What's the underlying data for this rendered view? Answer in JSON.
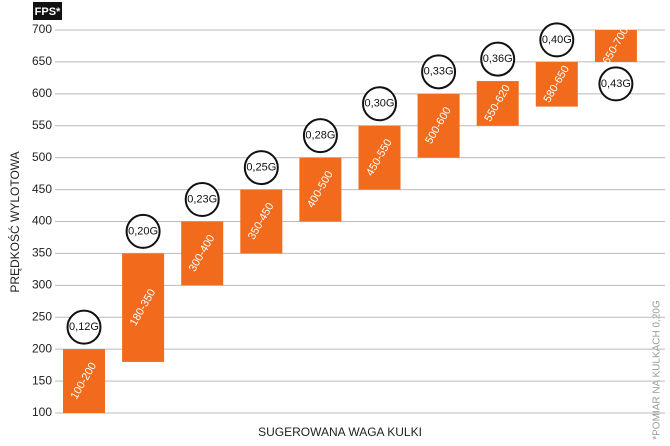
{
  "chart_data": {
    "type": "range-bar",
    "unit_label": "FPS*",
    "y_label": "PRĘDKOŚĆ WYLOTOWA",
    "x_label": "SUGEROWANA WAGA KULKI",
    "note": "*POMIAR NA KULKACH 0,20G",
    "low": [
      100,
      180,
      300,
      350,
      400,
      450,
      500,
      550,
      580,
      650
    ],
    "high": [
      200,
      350,
      400,
      450,
      500,
      550,
      600,
      620,
      650,
      700
    ],
    "value_labels": [
      "100-200",
      "180-350",
      "300-400",
      "350-450",
      "400-500",
      "450-550",
      "500-600",
      "550-620",
      "580-650",
      "650-700"
    ],
    "weight_labels": [
      "0,12G",
      "0,20G",
      "0,23G",
      "0,25G",
      "0,28G",
      "0,30G",
      "0,33G",
      "0,36G",
      "0,40G",
      "0,43G"
    ],
    "color": "#f26a1b",
    "ylim": [
      100,
      700
    ],
    "yticks": [
      100,
      150,
      200,
      250,
      300,
      350,
      400,
      450,
      500,
      550,
      600,
      650,
      700
    ],
    "grid": true
  }
}
